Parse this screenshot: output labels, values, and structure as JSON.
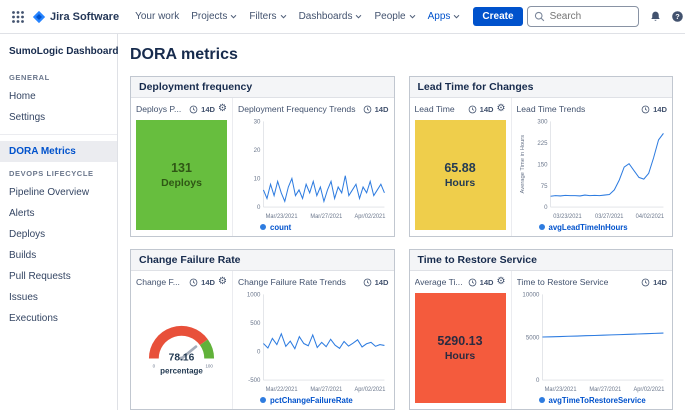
{
  "navbar": {
    "app_name": "Jira Software",
    "items": [
      {
        "label": "Your work",
        "dropdown": false
      },
      {
        "label": "Projects",
        "dropdown": true
      },
      {
        "label": "Filters",
        "dropdown": true
      },
      {
        "label": "Dashboards",
        "dropdown": true
      },
      {
        "label": "People",
        "dropdown": true
      },
      {
        "label": "Apps",
        "dropdown": true
      }
    ],
    "create_label": "Create",
    "search_placeholder": "Search"
  },
  "sidebar": {
    "title": "SumoLogic Dashboard",
    "general_heading": "GENERAL",
    "general_items": [
      "Home",
      "Settings"
    ],
    "selected_item": "DORA Metrics",
    "devops_heading": "DEVOPS LIFECYCLE",
    "devops_items": [
      "Pipeline Overview",
      "Alerts",
      "Deploys",
      "Builds",
      "Pull Requests",
      "Issues",
      "Executions"
    ]
  },
  "main": {
    "title": "DORA metrics",
    "panels": [
      {
        "title": "Deployment frequency",
        "stat_label": "Deploys P...",
        "stat_range": "14D",
        "stat_value": "131",
        "stat_unit": "Deploys",
        "chart_label": "Deployment Frequency Trends",
        "chart_range": "14D",
        "legend": "count"
      },
      {
        "title": "Lead Time for Changes",
        "stat_label": "Lead Time",
        "stat_range": "14D",
        "stat_value": "65.88",
        "stat_unit": "Hours",
        "chart_label": "Lead Time Trends",
        "chart_range": "14D",
        "legend": "avgLeadTimeInHours"
      },
      {
        "title": "Change Failure Rate",
        "stat_label": "Change F...",
        "stat_range": "14D",
        "chart_label": "Change Failure Rate Trends",
        "chart_range": "14D",
        "legend": "pctChangeFailureRate"
      },
      {
        "title": "Time to Restore Service",
        "stat_label": "Average Ti...",
        "stat_range": "14D",
        "stat_value": "5290.13",
        "stat_unit": "Hours",
        "chart_label": "Time to Restore Service",
        "chart_range": "14D",
        "legend": "avgTimeToRestoreService"
      }
    ]
  },
  "gauge": {
    "value": "78.16",
    "unit": "percentage",
    "value_num": 78.16,
    "min_label": "0",
    "max_label": "100",
    "segments": [
      {
        "from": 0,
        "to": 80,
        "color": "#E8503A"
      },
      {
        "from": 80,
        "to": 100,
        "color": "#61B23A"
      }
    ]
  },
  "chart_data": [
    {
      "type": "line",
      "title": "Deployment Frequency Trends",
      "legend": [
        "count"
      ],
      "ylim": [
        0,
        30
      ],
      "yticks": [
        0,
        10,
        20,
        30
      ],
      "xtick_labels": [
        "Mar/23/2021",
        "Mar/27/2021",
        "Apr/02/2021"
      ],
      "values": [
        6,
        3,
        8,
        4,
        9,
        5,
        2,
        7,
        10,
        4,
        6,
        3,
        8,
        5,
        9,
        4,
        7,
        2,
        6,
        9,
        3,
        7,
        5,
        11,
        4,
        6,
        8,
        3,
        7,
        5,
        9,
        4,
        6,
        8,
        5
      ]
    },
    {
      "type": "line",
      "title": "Lead Time Trends",
      "legend": [
        "avgLeadTimeInHours"
      ],
      "ylabel": "Average Time in Hours",
      "ylim": [
        0,
        300
      ],
      "yticks": [
        0,
        75,
        150,
        225,
        300
      ],
      "xtick_labels": [
        "03/23/2021",
        "03/27/2021",
        "04/02/2021"
      ],
      "values": [
        38,
        40,
        39,
        41,
        40,
        40,
        39,
        42,
        40,
        41,
        40,
        42,
        44,
        60,
        95,
        140,
        152,
        128,
        104,
        98,
        118,
        172,
        235,
        258
      ]
    },
    {
      "type": "line",
      "title": "Change Failure Rate Trends",
      "legend": [
        "pctChangeFailureRate"
      ],
      "ylim": [
        -500,
        1000
      ],
      "yticks": [
        -500,
        0,
        500,
        1000
      ],
      "xtick_labels": [
        "Mar/22/2021",
        "Mar/27/2021",
        "Apr/02/2021"
      ],
      "values": [
        140,
        60,
        230,
        120,
        310,
        90,
        180,
        50,
        260,
        140,
        100,
        290,
        70,
        160,
        85,
        215,
        110,
        55,
        175,
        95,
        145,
        205,
        80,
        135,
        160,
        90,
        120,
        105
      ]
    },
    {
      "type": "line",
      "title": "Time to Restore Service",
      "legend": [
        "avgTimeToRestoreService"
      ],
      "ylim": [
        0,
        10000
      ],
      "yticks": [
        0,
        5000,
        10000
      ],
      "xtick_labels": [
        "Mar/23/2021",
        "Mar/27/2021",
        "Apr/02/2021"
      ],
      "values": [
        5020,
        5050,
        5080,
        5110,
        5140,
        5170,
        5200,
        5240,
        5270,
        5300,
        5340,
        5370,
        5410,
        5450,
        5490
      ]
    }
  ],
  "colors": {
    "brand_blue": "#0052CC",
    "stat_green": "#67BE3E",
    "stat_yellow": "#EFCE4B",
    "stat_red": "#F45B3D",
    "line_blue": "#2E7CE0",
    "gauge_red": "#E8503A",
    "gauge_green": "#61B23A"
  }
}
